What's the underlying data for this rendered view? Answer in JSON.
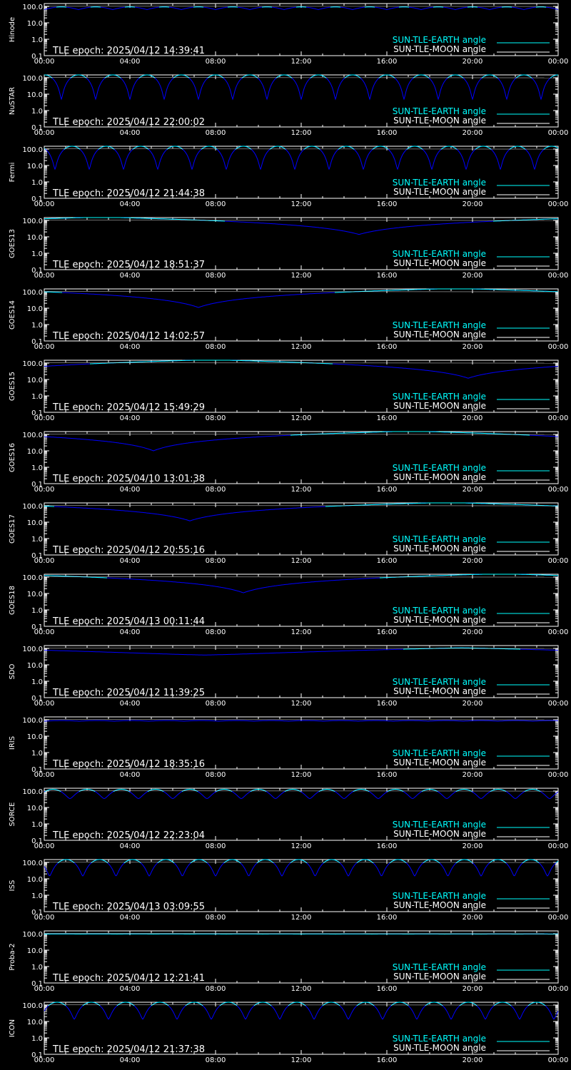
{
  "colors": {
    "background": "#000000",
    "axes": "#ffffff",
    "earth_angle": "#00ffff",
    "moon_angle": "#ffffff",
    "occultation": "#0000ff"
  },
  "legend": {
    "earth_label": "SUN-TLE-EARTH angle",
    "moon_label": "SUN-TLE-MOON angle"
  },
  "chart_data": [
    {
      "type": "line",
      "satellite": "Hinode",
      "epoch": "TLE epoch: 2025/04/12 14:39:41",
      "pattern": "flat",
      "params": {
        "base": 93,
        "dip": 64,
        "period": 1.6
      },
      "yscale": "log",
      "ylim": [
        0.1,
        150
      ],
      "yticks": [
        "100.0",
        "10.0",
        "1.0",
        "0.1"
      ],
      "xticks": [
        "00:00",
        "04:00",
        "08:00",
        "12:00",
        "16:00",
        "20:00",
        "00:00"
      ],
      "xlim_hours": [
        0,
        24
      ],
      "series": [
        {
          "name": "SUN-TLE-EARTH angle",
          "color": "#00ffff"
        },
        {
          "name": "SUN-TLE-MOON angle",
          "color": "#ffffff"
        }
      ]
    },
    {
      "type": "line",
      "satellite": "NuSTAR",
      "epoch": "TLE epoch: 2025/04/12 22:00:02",
      "pattern": "orbit",
      "params": {
        "peak": 150,
        "min": 5,
        "period": 1.6,
        "phase": 0.8
      },
      "yscale": "log",
      "ylim": [
        0.1,
        150
      ],
      "yticks": [
        "100.0",
        "10.0",
        "1.0",
        "0.1"
      ],
      "xticks": [
        "00:00",
        "04:00",
        "08:00",
        "12:00",
        "16:00",
        "20:00",
        "00:00"
      ],
      "xlim_hours": [
        0,
        24
      ],
      "series": [
        {
          "name": "SUN-TLE-EARTH angle",
          "color": "#00ffff"
        },
        {
          "name": "SUN-TLE-MOON angle",
          "color": "#ffffff"
        }
      ]
    },
    {
      "type": "line",
      "satellite": "Fermi",
      "epoch": "TLE epoch: 2025/04/12 21:44:38",
      "pattern": "orbit",
      "params": {
        "peak": 150,
        "min": 6,
        "period": 1.6,
        "phase": 1.1
      },
      "yscale": "log",
      "ylim": [
        0.1,
        150
      ],
      "yticks": [
        "100.0",
        "10.0",
        "1.0",
        "0.1"
      ],
      "xticks": [
        "00:00",
        "04:00",
        "08:00",
        "12:00",
        "16:00",
        "20:00",
        "00:00"
      ],
      "xlim_hours": [
        0,
        24
      ],
      "series": [
        {
          "name": "SUN-TLE-EARTH angle",
          "color": "#00ffff"
        },
        {
          "name": "SUN-TLE-MOON angle",
          "color": "#ffffff"
        }
      ]
    },
    {
      "type": "line",
      "satellite": "GOES13",
      "epoch": "TLE epoch: 2025/04/12 18:51:37",
      "pattern": "geo",
      "params": {
        "min_time": 14.7,
        "min_val": 14,
        "max_val": 160
      },
      "yscale": "log",
      "ylim": [
        0.1,
        150
      ],
      "yticks": [
        "100.0",
        "10.0",
        "1.0",
        "0.1"
      ],
      "xticks": [
        "00:00",
        "04:00",
        "08:00",
        "12:00",
        "16:00",
        "20:00",
        "00:00"
      ],
      "xlim_hours": [
        0,
        24
      ],
      "series": [
        {
          "name": "SUN-TLE-EARTH angle",
          "color": "#00ffff"
        },
        {
          "name": "SUN-TLE-MOON angle",
          "color": "#ffffff"
        }
      ]
    },
    {
      "type": "line",
      "satellite": "GOES14",
      "epoch": "TLE epoch: 2025/04/12 14:02:57",
      "pattern": "geo",
      "params": {
        "min_time": 7.2,
        "min_val": 11,
        "max_val": 160
      },
      "yscale": "log",
      "ylim": [
        0.1,
        150
      ],
      "yticks": [
        "100.0",
        "10.0",
        "1.0",
        "0.1"
      ],
      "xticks": [
        "00:00",
        "04:00",
        "08:00",
        "12:00",
        "16:00",
        "20:00",
        "00:00"
      ],
      "xlim_hours": [
        0,
        24
      ],
      "series": [
        {
          "name": "SUN-TLE-EARTH angle",
          "color": "#00ffff"
        },
        {
          "name": "SUN-TLE-MOON angle",
          "color": "#ffffff"
        }
      ]
    },
    {
      "type": "line",
      "satellite": "GOES15",
      "epoch": "TLE epoch: 2025/04/12 15:49:29",
      "pattern": "geo",
      "params": {
        "min_time": 19.8,
        "min_val": 12,
        "max_val": 160
      },
      "yscale": "log",
      "ylim": [
        0.1,
        150
      ],
      "yticks": [
        "100.0",
        "10.0",
        "1.0",
        "0.1"
      ],
      "xticks": [
        "00:00",
        "04:00",
        "08:00",
        "12:00",
        "16:00",
        "20:00",
        "00:00"
      ],
      "xlim_hours": [
        0,
        24
      ],
      "series": [
        {
          "name": "SUN-TLE-EARTH angle",
          "color": "#00ffff"
        },
        {
          "name": "SUN-TLE-MOON angle",
          "color": "#ffffff"
        }
      ]
    },
    {
      "type": "line",
      "satellite": "GOES16",
      "epoch": "TLE epoch: 2025/04/10 13:01:38",
      "pattern": "geo",
      "params": {
        "min_time": 5.1,
        "min_val": 10,
        "max_val": 160
      },
      "yscale": "log",
      "ylim": [
        0.1,
        150
      ],
      "yticks": [
        "100.0",
        "10.0",
        "1.0",
        "0.1"
      ],
      "xticks": [
        "00:00",
        "04:00",
        "08:00",
        "12:00",
        "16:00",
        "20:00",
        "00:00"
      ],
      "xlim_hours": [
        0,
        24
      ],
      "series": [
        {
          "name": "SUN-TLE-EARTH angle",
          "color": "#00ffff"
        },
        {
          "name": "SUN-TLE-MOON angle",
          "color": "#ffffff"
        }
      ]
    },
    {
      "type": "line",
      "satellite": "GOES17",
      "epoch": "TLE epoch: 2025/04/12 20:55:16",
      "pattern": "geo",
      "params": {
        "min_time": 6.8,
        "min_val": 12,
        "max_val": 160
      },
      "yscale": "log",
      "ylim": [
        0.1,
        150
      ],
      "yticks": [
        "100.0",
        "10.0",
        "1.0",
        "0.1"
      ],
      "xticks": [
        "00:00",
        "04:00",
        "08:00",
        "12:00",
        "16:00",
        "20:00",
        "00:00"
      ],
      "xlim_hours": [
        0,
        24
      ],
      "series": [
        {
          "name": "SUN-TLE-EARTH angle",
          "color": "#00ffff"
        },
        {
          "name": "SUN-TLE-MOON angle",
          "color": "#ffffff"
        }
      ]
    },
    {
      "type": "line",
      "satellite": "GOES18",
      "epoch": "TLE epoch: 2025/04/13 00:11:44",
      "pattern": "geo",
      "params": {
        "min_time": 9.3,
        "min_val": 11,
        "max_val": 160
      },
      "yscale": "log",
      "ylim": [
        0.1,
        150
      ],
      "yticks": [
        "100.0",
        "10.0",
        "1.0",
        "0.1"
      ],
      "xticks": [
        "00:00",
        "04:00",
        "08:00",
        "12:00",
        "16:00",
        "20:00",
        "00:00"
      ],
      "xlim_hours": [
        0,
        24
      ],
      "series": [
        {
          "name": "SUN-TLE-EARTH angle",
          "color": "#00ffff"
        },
        {
          "name": "SUN-TLE-MOON angle",
          "color": "#ffffff"
        }
      ]
    },
    {
      "type": "line",
      "satellite": "SDO",
      "epoch": "TLE epoch: 2025/04/12 11:39:25",
      "pattern": "shallow",
      "params": {
        "min_time": 7.5,
        "min_val": 40,
        "max_val": 110
      },
      "yscale": "log",
      "ylim": [
        0.1,
        150
      ],
      "yticks": [
        "100.0",
        "10.0",
        "1.0",
        "0.1"
      ],
      "xticks": [
        "00:00",
        "04:00",
        "08:00",
        "12:00",
        "16:00",
        "20:00",
        "00:00"
      ],
      "xlim_hours": [
        0,
        24
      ],
      "series": [
        {
          "name": "SUN-TLE-EARTH angle",
          "color": "#00ffff"
        },
        {
          "name": "SUN-TLE-MOON angle",
          "color": "#ffffff"
        }
      ]
    },
    {
      "type": "line",
      "satellite": "IRIS",
      "epoch": "TLE epoch: 2025/04/12 18:35:16",
      "pattern": "flat",
      "params": {
        "base": 90,
        "dip": 82,
        "period": 1.63
      },
      "yscale": "log",
      "ylim": [
        0.1,
        150
      ],
      "yticks": [
        "100.0",
        "10.0",
        "1.0",
        "0.1"
      ],
      "xticks": [
        "00:00",
        "04:00",
        "08:00",
        "12:00",
        "16:00",
        "20:00",
        "00:00"
      ],
      "xlim_hours": [
        0,
        24
      ],
      "series": [
        {
          "name": "SUN-TLE-EARTH angle",
          "color": "#00ffff"
        },
        {
          "name": "SUN-TLE-MOON angle",
          "color": "#ffffff"
        }
      ]
    },
    {
      "type": "line",
      "satellite": "SORCE",
      "epoch": "TLE epoch: 2025/04/12 22:23:04",
      "pattern": "orbit",
      "params": {
        "peak": 130,
        "min": 35,
        "period": 1.6,
        "phase": 0.4
      },
      "yscale": "log",
      "ylim": [
        0.1,
        150
      ],
      "yticks": [
        "100.0",
        "10.0",
        "1.0",
        "0.1"
      ],
      "xticks": [
        "00:00",
        "04:00",
        "08:00",
        "12:00",
        "16:00",
        "20:00",
        "00:00"
      ],
      "xlim_hours": [
        0,
        24
      ],
      "series": [
        {
          "name": "SUN-TLE-EARTH angle",
          "color": "#00ffff"
        },
        {
          "name": "SUN-TLE-MOON angle",
          "color": "#ffffff"
        }
      ]
    },
    {
      "type": "line",
      "satellite": "ISS",
      "epoch": "TLE epoch: 2025/04/13 03:09:55",
      "pattern": "orbit",
      "params": {
        "peak": 150,
        "min": 15,
        "period": 1.55,
        "phase": 1.3
      },
      "yscale": "log",
      "ylim": [
        0.1,
        150
      ],
      "yticks": [
        "100.0",
        "10.0",
        "1.0",
        "0.1"
      ],
      "xticks": [
        "00:00",
        "04:00",
        "08:00",
        "12:00",
        "16:00",
        "20:00",
        "00:00"
      ],
      "xlim_hours": [
        0,
        24
      ],
      "series": [
        {
          "name": "SUN-TLE-EARTH angle",
          "color": "#00ffff"
        },
        {
          "name": "SUN-TLE-MOON angle",
          "color": "#ffffff"
        }
      ]
    },
    {
      "type": "line",
      "satellite": "Proba-2",
      "epoch": "TLE epoch: 2025/04/12 12:21:41",
      "pattern": "flat",
      "params": {
        "base": 98,
        "dip": 96,
        "period": 1.7
      },
      "yscale": "log",
      "ylim": [
        0.1,
        150
      ],
      "yticks": [
        "100.0",
        "10.0",
        "1.0",
        "0.1"
      ],
      "xticks": [
        "00:00",
        "04:00",
        "08:00",
        "12:00",
        "16:00",
        "20:00",
        "00:00"
      ],
      "xlim_hours": [
        0,
        24
      ],
      "series": [
        {
          "name": "SUN-TLE-EARTH angle",
          "color": "#00ffff"
        },
        {
          "name": "SUN-TLE-MOON angle",
          "color": "#ffffff"
        }
      ]
    },
    {
      "type": "line",
      "satellite": "ICON",
      "epoch": "TLE epoch: 2025/04/12 21:37:38",
      "pattern": "orbit",
      "params": {
        "peak": 150,
        "min": 14,
        "period": 1.6,
        "phase": 0.2
      },
      "yscale": "log",
      "ylim": [
        0.1,
        150
      ],
      "yticks": [
        "100.0",
        "10.0",
        "1.0",
        "0.1"
      ],
      "xticks": [
        "00:00",
        "04:00",
        "08:00",
        "12:00",
        "16:00",
        "20:00",
        "00:00"
      ],
      "xlim_hours": [
        0,
        24
      ],
      "series": [
        {
          "name": "SUN-TLE-EARTH angle",
          "color": "#00ffff"
        },
        {
          "name": "SUN-TLE-MOON angle",
          "color": "#ffffff"
        }
      ]
    }
  ]
}
